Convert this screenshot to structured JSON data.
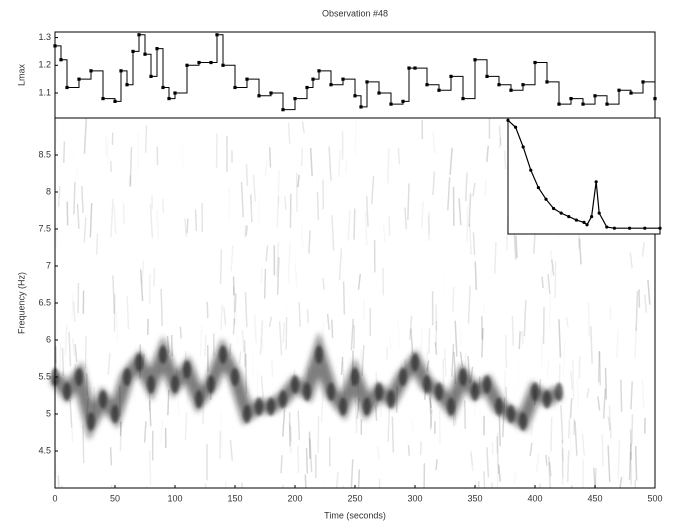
{
  "chart_data": [
    {
      "type": "line",
      "title": "Observation #48",
      "ylabel": "Lmax",
      "color": "#000000",
      "drawstyle": "steps-post",
      "x": [
        0,
        5,
        10,
        20,
        30,
        40,
        50,
        55,
        60,
        65,
        70,
        75,
        80,
        85,
        90,
        95,
        100,
        110,
        120,
        130,
        135,
        140,
        150,
        160,
        170,
        180,
        190,
        200,
        210,
        215,
        220,
        230,
        240,
        250,
        255,
        260,
        270,
        280,
        290,
        295,
        300,
        310,
        320,
        330,
        340,
        350,
        360,
        370,
        380,
        390,
        400,
        410,
        420,
        430,
        440,
        450,
        460,
        470,
        480,
        490,
        500
      ],
      "values": [
        1.27,
        1.22,
        1.12,
        1.15,
        1.18,
        1.08,
        1.07,
        1.18,
        1.13,
        1.25,
        1.31,
        1.24,
        1.16,
        1.26,
        1.12,
        1.08,
        1.1,
        1.2,
        1.21,
        1.21,
        1.31,
        1.2,
        1.12,
        1.15,
        1.09,
        1.1,
        1.04,
        1.08,
        1.12,
        1.15,
        1.18,
        1.13,
        1.15,
        1.09,
        1.05,
        1.14,
        1.1,
        1.06,
        1.07,
        1.19,
        1.19,
        1.13,
        1.11,
        1.16,
        1.08,
        1.22,
        1.16,
        1.13,
        1.11,
        1.13,
        1.21,
        1.14,
        1.06,
        1.08,
        1.06,
        1.09,
        1.06,
        1.11,
        1.1,
        1.14,
        1.08
      ],
      "xlim": [
        0,
        500
      ],
      "ylim": [
        1.01,
        1.32
      ],
      "yticks": [
        1.1,
        1.2,
        1.3
      ]
    },
    {
      "type": "spectrogram",
      "xlabel": "Time (seconds)",
      "ylabel": "Frequency (Hz)",
      "color": "#1a1a1a",
      "x": [
        0,
        10,
        20,
        30,
        40,
        50,
        60,
        70,
        80,
        90,
        100,
        110,
        120,
        130,
        140,
        150,
        160,
        170,
        180,
        190,
        200,
        210,
        220,
        230,
        240,
        250,
        260,
        270,
        280,
        290,
        300,
        310,
        320,
        330,
        340,
        350,
        360,
        370,
        380,
        390,
        400,
        410,
        420
      ],
      "values": [
        5.5,
        5.3,
        5.5,
        4.9,
        5.2,
        5.0,
        5.5,
        5.7,
        5.4,
        5.8,
        5.4,
        5.6,
        5.2,
        5.4,
        5.8,
        5.5,
        5.0,
        5.1,
        5.1,
        5.2,
        5.4,
        5.3,
        5.8,
        5.3,
        5.1,
        5.5,
        5.1,
        5.3,
        5.2,
        5.5,
        5.7,
        5.4,
        5.3,
        5.1,
        5.5,
        5.3,
        5.4,
        5.1,
        5.0,
        4.9,
        5.3,
        5.2,
        5.3
      ],
      "xlim": [
        0,
        500
      ],
      "ylim": [
        4,
        9
      ],
      "xticks": [
        0,
        50,
        100,
        150,
        200,
        250,
        300,
        350,
        400,
        450,
        500
      ],
      "yticks": [
        4.5,
        5,
        5.5,
        6,
        6.5,
        7,
        7.5,
        8,
        8.5
      ]
    },
    {
      "type": "scatter",
      "color": "#000000",
      "x": [
        0,
        0.05,
        0.1,
        0.15,
        0.2,
        0.25,
        0.3,
        0.35,
        0.4,
        0.45,
        0.5,
        0.52,
        0.55,
        0.58,
        0.6,
        0.65,
        0.7,
        0.8,
        0.9,
        1.0
      ],
      "values": [
        0.98,
        0.92,
        0.75,
        0.55,
        0.4,
        0.3,
        0.22,
        0.18,
        0.15,
        0.12,
        0.1,
        0.08,
        0.15,
        0.45,
        0.18,
        0.06,
        0.05,
        0.05,
        0.05,
        0.05
      ],
      "xlim": [
        0,
        1
      ],
      "ylim": [
        0,
        1
      ]
    }
  ]
}
